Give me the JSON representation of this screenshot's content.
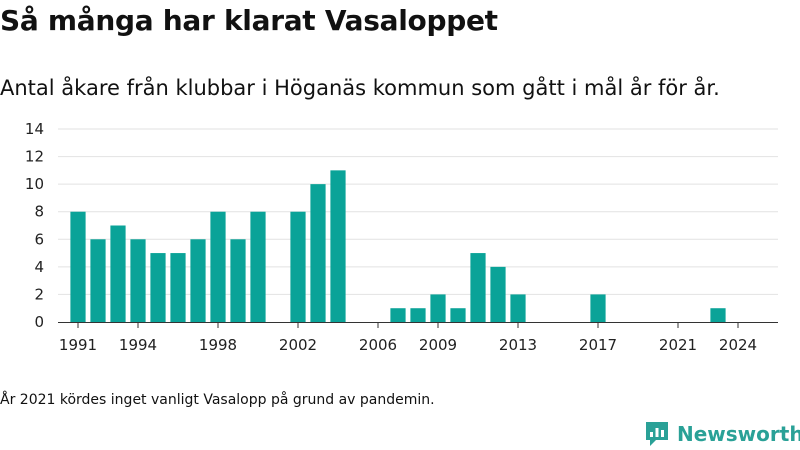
{
  "chart_data": {
    "type": "bar",
    "title": "Så många har klarat Vasaloppet",
    "subtitle": "Antal åkare från klubbar i Höganäs kommun som gått i mål år för år.",
    "xlabel": "",
    "ylabel": "",
    "x": [
      1991,
      1992,
      1993,
      1994,
      1995,
      1996,
      1997,
      1998,
      1999,
      2000,
      2002,
      2003,
      2004,
      2007,
      2008,
      2009,
      2010,
      2011,
      2012,
      2013,
      2017,
      2023
    ],
    "values": [
      8,
      6,
      7,
      6,
      5,
      5,
      6,
      8,
      6,
      8,
      8,
      10,
      11,
      1,
      1,
      2,
      1,
      5,
      4,
      2,
      2,
      1
    ],
    "xlim": [
      1990,
      2026
    ],
    "ylim": [
      0,
      14
    ],
    "yticks": [
      0,
      2,
      4,
      6,
      8,
      10,
      12,
      14
    ],
    "xticks": [
      1991,
      1994,
      1998,
      2002,
      2006,
      2009,
      2013,
      2017,
      2021,
      2024
    ],
    "bar_color": "#0aa398",
    "grid": "horizontal",
    "legend": "none"
  },
  "footnote": "År 2021 kördes inget vanligt Vasalopp på grund av pandemin.",
  "brand": {
    "name": "Newsworthy",
    "color": "#2aa197"
  }
}
